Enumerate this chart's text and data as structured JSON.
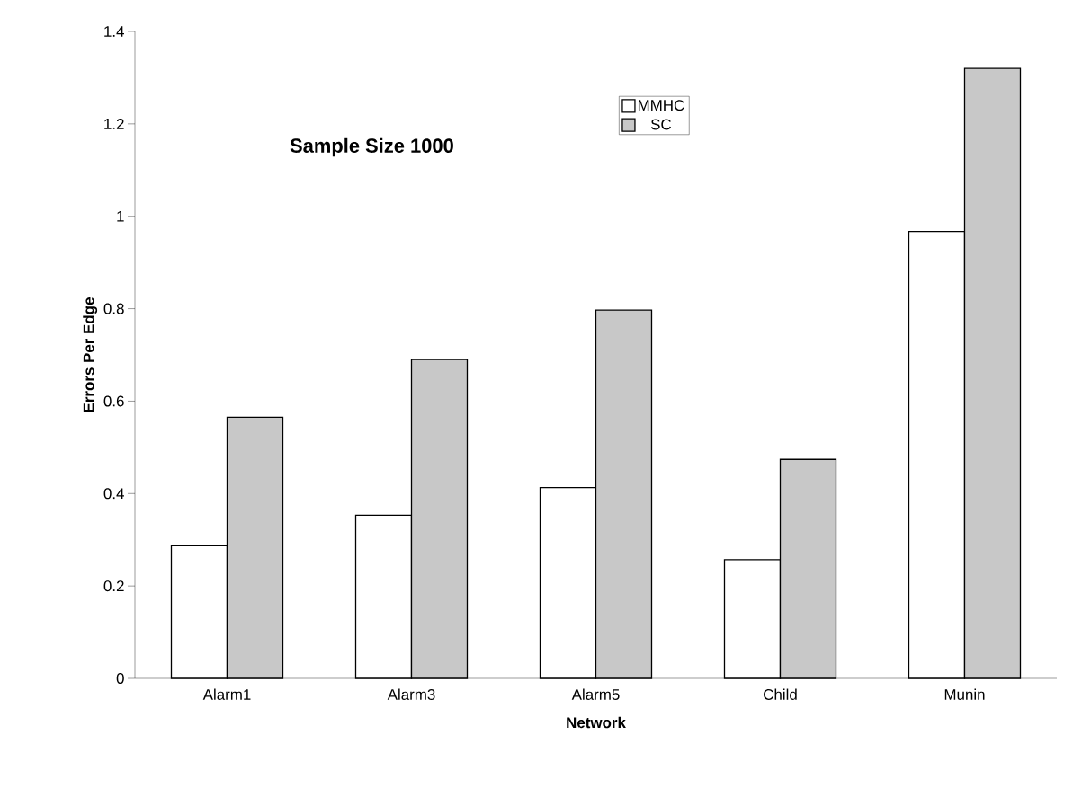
{
  "chart_data": {
    "type": "bar",
    "title": "Sample Size 1000",
    "xlabel": "Network",
    "ylabel": "Errors Per Edge",
    "categories": [
      "Alarm1",
      "Alarm3",
      "Alarm5",
      "Child",
      "Munin"
    ],
    "series": [
      {
        "name": "MMHC",
        "color": "#ffffff",
        "values": [
          0.287,
          0.353,
          0.413,
          0.257,
          0.967
        ]
      },
      {
        "name": "SC",
        "color": "#c8c8c8",
        "values": [
          0.565,
          0.69,
          0.797,
          0.474,
          1.32
        ]
      }
    ],
    "ylim": [
      0,
      1.4
    ],
    "yticks": [
      0,
      0.2,
      0.4,
      0.6,
      0.8,
      1,
      1.2,
      1.4
    ],
    "grid": false,
    "legend": "top"
  }
}
